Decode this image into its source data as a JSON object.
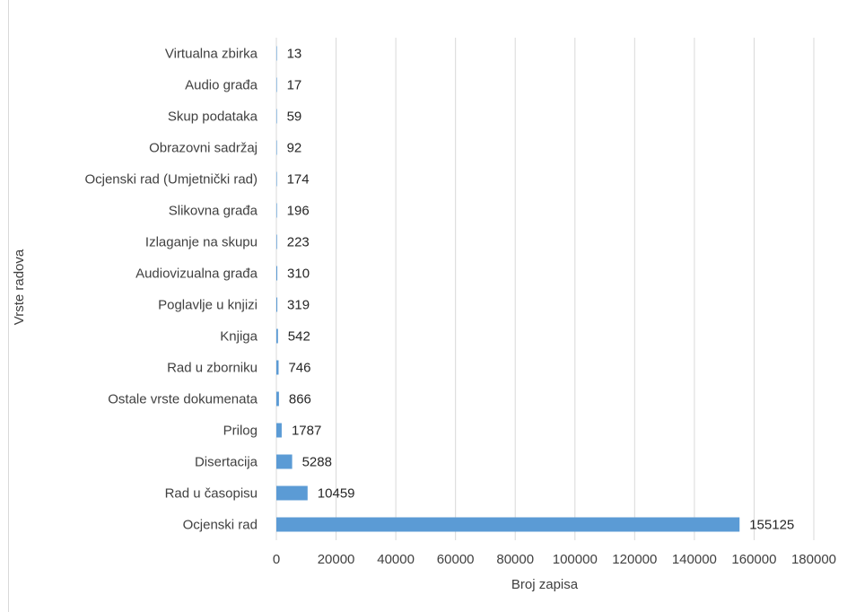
{
  "chart_data": {
    "type": "bar",
    "orientation": "horizontal",
    "title": "",
    "xlabel": "Broj zapisa",
    "ylabel": "Vrste radova",
    "categories": [
      "Virtualna zbirka",
      "Audio građa",
      "Skup podataka",
      "Obrazovni sadržaj",
      "Ocjenski rad (Umjetnički rad)",
      "Slikovna građa",
      "Izlaganje na skupu",
      "Audiovizualna građa",
      "Poglavlje u knjizi",
      "Knjiga",
      "Rad u zborniku",
      "Ostale vrste dokumenata",
      "Prilog",
      "Disertacija",
      "Rad u časopisu",
      "Ocjenski rad"
    ],
    "values": [
      13,
      17,
      59,
      92,
      174,
      196,
      223,
      310,
      319,
      542,
      746,
      866,
      1787,
      5288,
      10459,
      155125
    ],
    "data_labels": [
      "13",
      "17",
      "59",
      "92",
      "174",
      "196",
      "223",
      "310",
      "319",
      "542",
      "746",
      "866",
      "1787",
      "5288",
      "10459",
      "155125"
    ],
    "xlim": [
      0,
      180000
    ],
    "x_ticks": [
      0,
      20000,
      40000,
      60000,
      80000,
      100000,
      120000,
      140000,
      160000,
      180000
    ],
    "x_tick_labels": [
      "0",
      "20000",
      "40000",
      "60000",
      "80000",
      "100000",
      "120000",
      "140000",
      "160000",
      "180000"
    ],
    "grid": true,
    "legend": "none",
    "bar_color": "#5b9bd5",
    "gridline_color": "#d9d9d9"
  }
}
